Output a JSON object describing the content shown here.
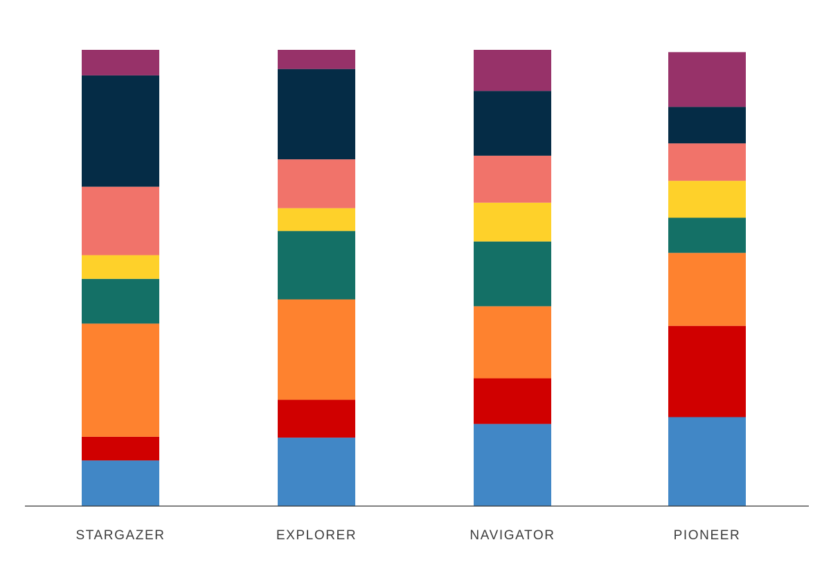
{
  "chart_data": {
    "type": "bar",
    "stacked": true,
    "orientation": "vertical",
    "title": "",
    "xlabel": "",
    "ylabel": "",
    "grid": false,
    "legend": "none",
    "ylim": [
      0,
      100
    ],
    "categories": [
      "STARGAZER",
      "EXPLORER",
      "NAVIGATOR",
      "PIONEER"
    ],
    "series": [
      {
        "color": "#4187c6",
        "values": [
          10,
          15,
          18,
          19.5
        ]
      },
      {
        "color": "#d00000",
        "values": [
          5.2,
          8.3,
          10,
          20
        ]
      },
      {
        "color": "#fe822f",
        "values": [
          24.8,
          22,
          15.8,
          16
        ]
      },
      {
        "color": "#147066",
        "values": [
          9.8,
          15,
          14.2,
          7.7
        ]
      },
      {
        "color": "#fed12a",
        "values": [
          5.2,
          5,
          8.5,
          8.1
        ]
      },
      {
        "color": "#f1736a",
        "values": [
          15,
          10.7,
          10.3,
          8.2
        ]
      },
      {
        "color": "#052c46",
        "values": [
          24.4,
          19.8,
          14.2,
          8
        ]
      },
      {
        "color": "#973269",
        "values": [
          5.6,
          4.2,
          9,
          12
        ]
      }
    ]
  }
}
